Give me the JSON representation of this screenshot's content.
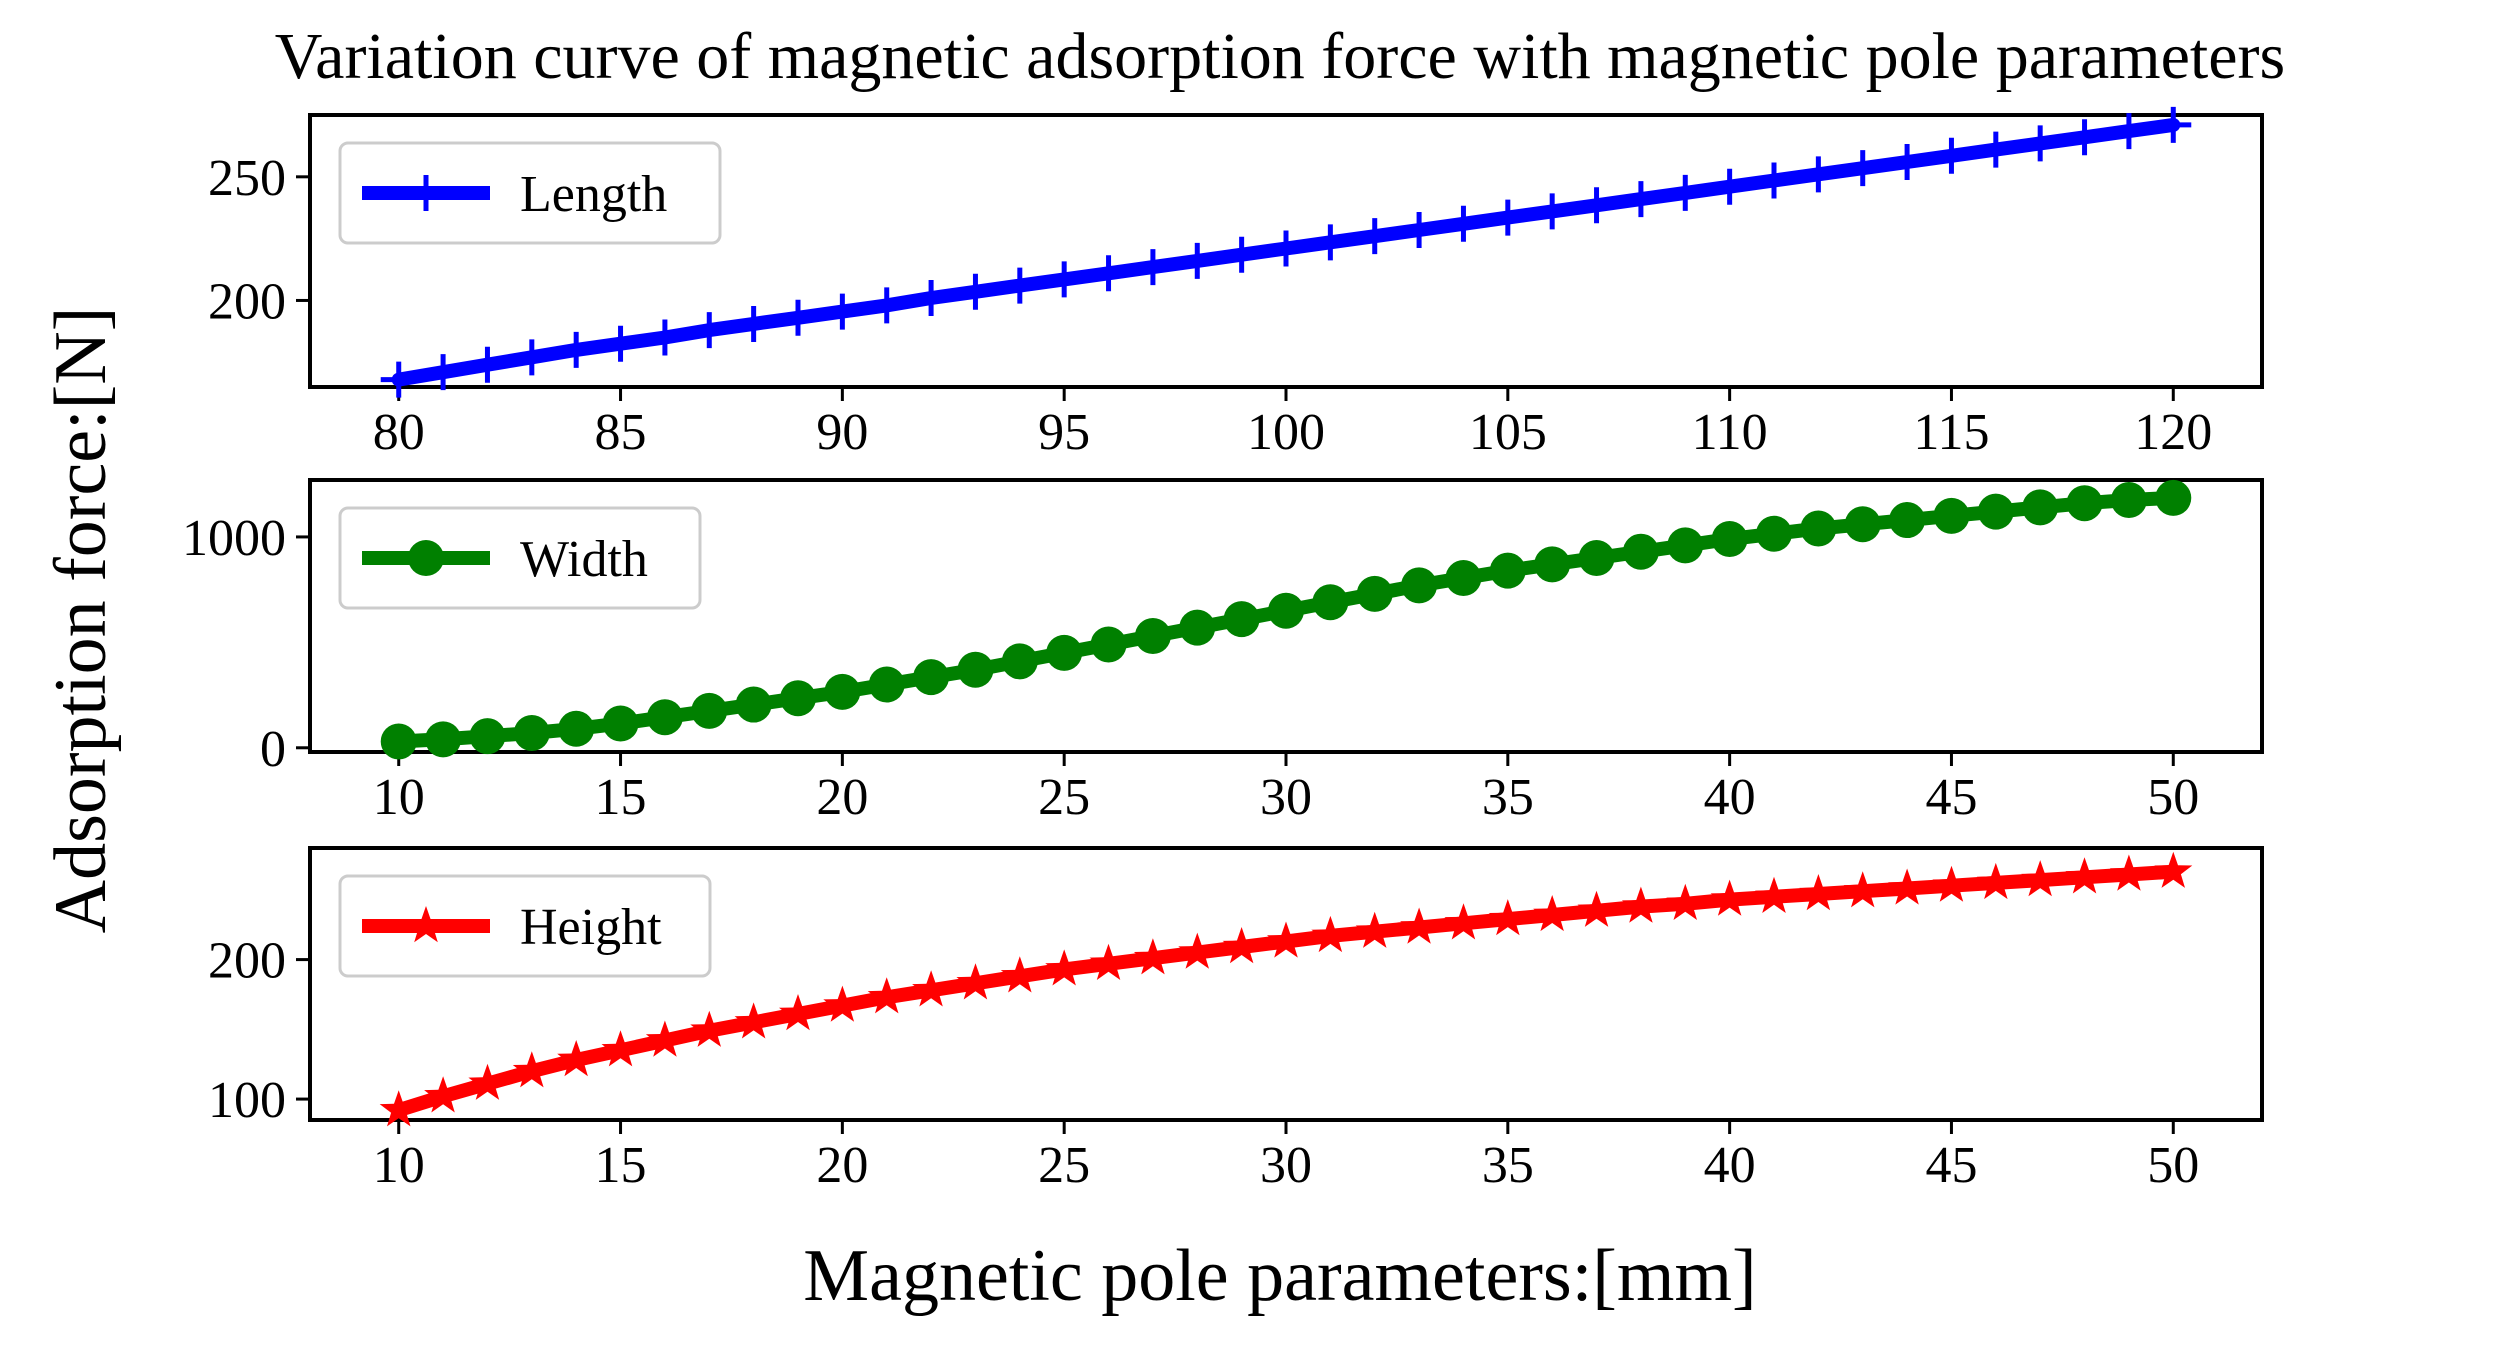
{
  "chart_data": {
    "type": "line",
    "title": "Variation curve of magnetic adsorption force with magnetic pole parameters",
    "xlabel": "Magnetic pole parameters:[mm]",
    "ylabel": "Adsorption force:[N]",
    "subplots": [
      {
        "series_name": "Length",
        "color": "#0000ff",
        "marker": "plus",
        "legend_position": "upper-left",
        "xlim": [
          78,
          122
        ],
        "ylim": [
          165,
          275
        ],
        "xticks": [
          80,
          85,
          90,
          95,
          100,
          105,
          110,
          115,
          120
        ],
        "yticks": [
          200,
          250
        ],
        "x": [
          80,
          81,
          82,
          83,
          84,
          85,
          86,
          87,
          88,
          89,
          90,
          91,
          92,
          93,
          94,
          95,
          96,
          97,
          98,
          99,
          100,
          101,
          102,
          103,
          104,
          105,
          106,
          107,
          108,
          109,
          110,
          111,
          112,
          113,
          114,
          115,
          116,
          117,
          118,
          119,
          120
        ],
        "y": [
          168,
          171,
          174,
          177,
          180,
          182.5,
          185,
          188,
          190.5,
          193,
          195.5,
          198,
          201,
          203.5,
          206,
          208.5,
          211,
          213.5,
          216,
          218.5,
          221,
          223.5,
          226,
          228.5,
          231,
          233.5,
          236,
          238.5,
          241,
          243.5,
          246,
          248.5,
          251,
          253.5,
          256,
          258.5,
          261,
          263.5,
          266,
          268.5,
          271
        ]
      },
      {
        "series_name": "Width",
        "color": "#008000",
        "marker": "circle",
        "legend_position": "upper-left",
        "xlim": [
          8,
          52
        ],
        "ylim": [
          -20,
          1270
        ],
        "xticks": [
          10,
          15,
          20,
          25,
          30,
          35,
          40,
          45,
          50
        ],
        "yticks": [
          0,
          1000
        ],
        "x": [
          10,
          11,
          12,
          13,
          14,
          15,
          16,
          17,
          18,
          19,
          20,
          21,
          22,
          23,
          24,
          25,
          26,
          27,
          28,
          29,
          30,
          31,
          32,
          33,
          34,
          35,
          36,
          37,
          38,
          39,
          40,
          41,
          42,
          43,
          44,
          45,
          46,
          47,
          48,
          49,
          50
        ],
        "y": [
          30,
          40,
          55,
          70,
          90,
          115,
          145,
          175,
          205,
          235,
          265,
          300,
          335,
          370,
          410,
          450,
          490,
          530,
          570,
          610,
          650,
          690,
          730,
          770,
          805,
          840,
          870,
          900,
          930,
          960,
          990,
          1015,
          1040,
          1060,
          1080,
          1100,
          1120,
          1140,
          1160,
          1175,
          1185
        ]
      },
      {
        "series_name": "Height",
        "color": "#ff0000",
        "marker": "star",
        "legend_position": "upper-left",
        "xlim": [
          8,
          52
        ],
        "ylim": [
          85,
          280
        ],
        "xticks": [
          10,
          15,
          20,
          25,
          30,
          35,
          40,
          45,
          50
        ],
        "yticks": [
          100,
          200
        ],
        "x": [
          10,
          11,
          12,
          13,
          14,
          15,
          16,
          17,
          18,
          19,
          20,
          21,
          22,
          23,
          24,
          25,
          26,
          27,
          28,
          29,
          30,
          31,
          32,
          33,
          34,
          35,
          36,
          37,
          38,
          39,
          40,
          41,
          42,
          43,
          44,
          45,
          46,
          47,
          48,
          49,
          50
        ],
        "y": [
          92,
          102,
          111,
          120,
          128,
          135,
          142,
          149,
          155,
          161,
          167,
          173,
          178,
          183,
          188,
          193,
          197,
          201,
          205,
          209,
          213,
          217,
          220,
          223,
          226,
          229,
          232,
          235,
          238,
          240,
          243,
          245,
          247,
          249,
          251,
          253,
          255,
          257,
          259,
          261,
          263
        ]
      }
    ]
  }
}
